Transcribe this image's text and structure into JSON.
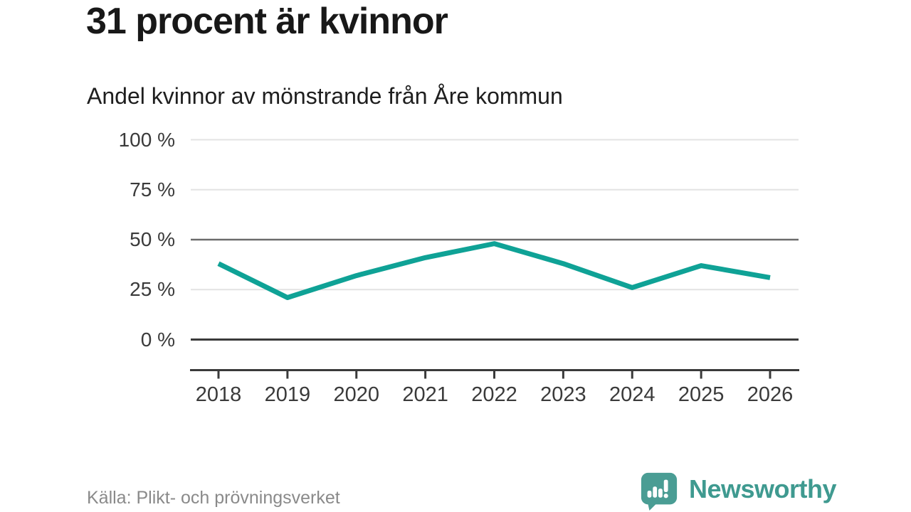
{
  "chart_data": {
    "type": "line",
    "title": "31 procent är kvinnor",
    "subtitle": "Andel kvinnor av mönstrande från Åre kommun",
    "x": [
      "2018",
      "2019",
      "2020",
      "2021",
      "2022",
      "2023",
      "2024",
      "2025",
      "2026"
    ],
    "series": [
      {
        "name": "Andel kvinnor av mönstrande",
        "values": [
          38,
          21,
          32,
          41,
          48,
          38,
          26,
          37,
          31
        ]
      }
    ],
    "unit": "%",
    "ylim": [
      0,
      100
    ],
    "y_ticks": [
      100,
      75,
      50,
      25,
      0
    ],
    "y_tick_labels": [
      "100 %",
      "75 %",
      "50 %",
      "25 %",
      "0 %"
    ],
    "grid": "on",
    "emphasized_gridlines": [
      50,
      0
    ],
    "legend": "none",
    "line_color": "#0fa296"
  },
  "footer": {
    "source": "Källa: Plikt- och prövningsverket",
    "brand": "Newsworthy",
    "logo_icon": "bar-chart-speech-bubble-icon"
  },
  "colors": {
    "accent_teal": "#0fa296",
    "logo_bubble_teal": "#4a9d94",
    "logo_text_teal": "#3f9a90",
    "grid_light": "#e3e3e3",
    "grid_mid": "#6b6b6b",
    "axis_dark": "#3a3a3a",
    "text_dark": "#181818",
    "text_muted": "#8a8a8a"
  }
}
